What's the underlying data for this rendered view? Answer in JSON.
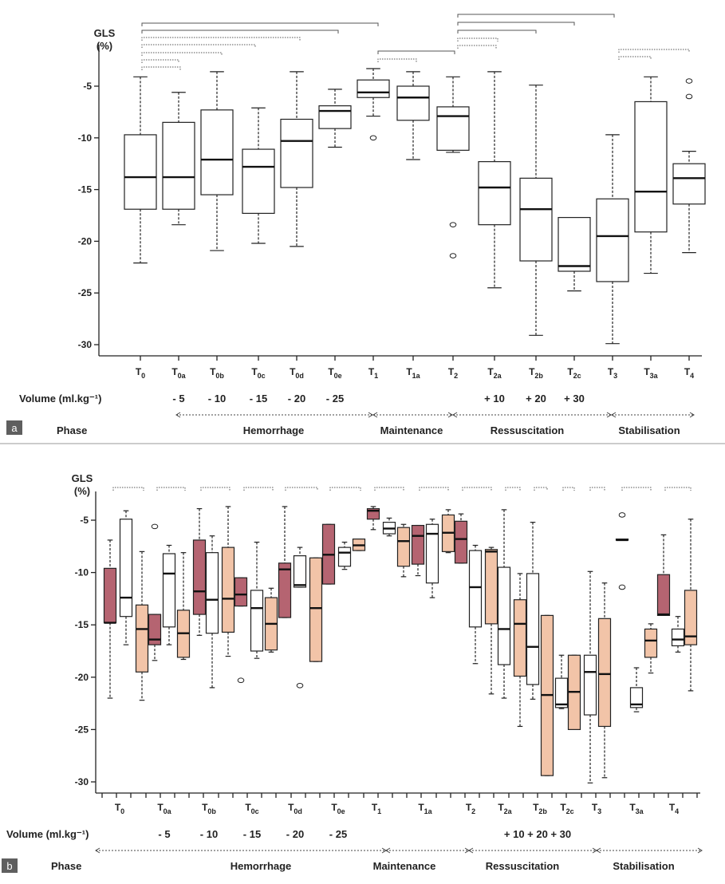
{
  "chart_data": [
    {
      "panel_label": "a",
      "type": "box",
      "title": "GLS\n(%)",
      "ylim": [
        -31,
        -1
      ],
      "yticks": [
        -5,
        -10,
        -15,
        -20,
        -25,
        -30
      ],
      "categories": [
        {
          "main": "T",
          "sub": "0"
        },
        {
          "main": "T",
          "sub": "0a"
        },
        {
          "main": "T",
          "sub": "0b"
        },
        {
          "main": "T",
          "sub": "0c"
        },
        {
          "main": "T",
          "sub": "0d"
        },
        {
          "main": "T",
          "sub": "0e"
        },
        {
          "main": "T",
          "sub": "1"
        },
        {
          "main": "T",
          "sub": "1a"
        },
        {
          "main": "T",
          "sub": "2"
        },
        {
          "main": "T",
          "sub": "2a"
        },
        {
          "main": "T",
          "sub": "2b"
        },
        {
          "main": "T",
          "sub": "2c"
        },
        {
          "main": "T",
          "sub": "3"
        },
        {
          "main": "T",
          "sub": "3a"
        },
        {
          "main": "T",
          "sub": "4"
        }
      ],
      "boxes": [
        {
          "min": -22.1,
          "q1": -16.9,
          "med": -13.8,
          "q3": -9.7,
          "max": -4.1,
          "outliers": []
        },
        {
          "min": -18.4,
          "q1": -16.9,
          "med": -13.8,
          "q3": -8.5,
          "max": -5.6,
          "outliers": []
        },
        {
          "min": -20.9,
          "q1": -15.5,
          "med": -12.1,
          "q3": -7.3,
          "max": -3.6,
          "outliers": []
        },
        {
          "min": -20.2,
          "q1": -17.3,
          "med": -12.8,
          "q3": -11.1,
          "max": -7.1,
          "outliers": []
        },
        {
          "min": -20.5,
          "q1": -14.8,
          "med": -10.3,
          "q3": -8.2,
          "max": -3.6,
          "outliers": []
        },
        {
          "min": -10.9,
          "q1": -9.1,
          "med": -7.4,
          "q3": -6.9,
          "max": -5.3,
          "outliers": []
        },
        {
          "min": -7.9,
          "q1": -6.1,
          "med": -5.6,
          "q3": -4.4,
          "max": -3.3,
          "outliers": [
            -10
          ]
        },
        {
          "min": -12.1,
          "q1": -8.3,
          "med": -6.1,
          "q3": -5.0,
          "max": -3.6,
          "outliers": []
        },
        {
          "min": -11.4,
          "q1": -11.2,
          "med": -7.9,
          "q3": -7.0,
          "max": -4.1,
          "outliers": [
            -18.4,
            -21.4
          ]
        },
        {
          "min": -24.5,
          "q1": -18.4,
          "med": -14.8,
          "q3": -12.3,
          "max": -3.6,
          "outliers": []
        },
        {
          "min": -29.1,
          "q1": -21.9,
          "med": -16.9,
          "q3": -13.9,
          "max": -4.9,
          "outliers": []
        },
        {
          "min": -24.8,
          "q1": -22.9,
          "med": -22.4,
          "q3": -17.7,
          "max": -17.7,
          "outliers": []
        },
        {
          "min": -29.9,
          "q1": -23.9,
          "med": -19.5,
          "q3": -15.9,
          "max": -9.7,
          "outliers": []
        },
        {
          "min": -23.1,
          "q1": -19.1,
          "med": -15.2,
          "q3": -6.5,
          "max": -4.1,
          "outliers": []
        },
        {
          "min": -21.1,
          "q1": -16.4,
          "med": -13.9,
          "q3": -12.5,
          "max": -11.3,
          "outliers": [
            -4.5,
            -6.0
          ]
        }
      ],
      "volume_label": "Volume (ml.kg⁻¹)",
      "volumes": [
        "",
        "- 5",
        "- 10",
        "- 15",
        "- 20",
        "- 25",
        "",
        "",
        "",
        "+ 10",
        "+ 20",
        "+ 30",
        "",
        "",
        ""
      ],
      "phase_label": "Phase",
      "phases": [
        "Hemorrhage",
        "Maintenance",
        "Ressuscitation",
        "Stabilisation"
      ]
    },
    {
      "panel_label": "b",
      "type": "box",
      "title": "GLS\n(%)",
      "ylim": [
        -30.6,
        -1.5
      ],
      "yticks": [
        -5,
        -10,
        -15,
        -20,
        -25,
        -30
      ],
      "categories": [
        {
          "main": "T",
          "sub": "0"
        },
        {
          "main": "T",
          "sub": "0a"
        },
        {
          "main": "T",
          "sub": "0b"
        },
        {
          "main": "T",
          "sub": "0c"
        },
        {
          "main": "T",
          "sub": "0d"
        },
        {
          "main": "T",
          "sub": "0e"
        },
        {
          "main": "T",
          "sub": "1"
        },
        {
          "main": "T",
          "sub": "1a"
        },
        {
          "main": "T",
          "sub": "2"
        },
        {
          "main": "T",
          "sub": "2a"
        },
        {
          "main": "T",
          "sub": "2b"
        },
        {
          "main": "T",
          "sub": "2c"
        },
        {
          "main": "T",
          "sub": "3"
        },
        {
          "main": "T",
          "sub": "3a"
        },
        {
          "main": "T",
          "sub": "4"
        }
      ],
      "colors": {
        "dark": "#b56471",
        "white": "#ffffff",
        "light": "#f2c4a8"
      },
      "boxes": [
        {
          "min": -22.0,
          "q1": -14.8,
          "med": -14.8,
          "q3": -9.6,
          "max": -6.9,
          "outliers": [],
          "color": "dark"
        },
        {
          "min": -16.9,
          "q1": -14.2,
          "med": -12.4,
          "q3": -4.9,
          "max": -4.1,
          "outliers": [],
          "color": "white"
        },
        {
          "min": -22.2,
          "q1": -19.5,
          "med": -15.4,
          "q3": -13.1,
          "max": -8.0,
          "outliers": [],
          "color": "light"
        },
        {
          "min": -18.4,
          "q1": -16.9,
          "med": -16.4,
          "q3": -14.0,
          "max": -14.0,
          "outliers": [
            -5.6
          ],
          "color": "dark"
        },
        {
          "min": -16.9,
          "q1": -15.2,
          "med": -10.1,
          "q3": -8.2,
          "max": -7.4,
          "outliers": [],
          "color": "white"
        },
        {
          "min": -18.3,
          "q1": -18.1,
          "med": -15.8,
          "q3": -13.6,
          "max": -8.1,
          "outliers": [],
          "color": "light"
        },
        {
          "min": -16.0,
          "q1": -14.0,
          "med": -11.8,
          "q3": -6.9,
          "max": -3.9,
          "outliers": [],
          "color": "dark"
        },
        {
          "min": -21.0,
          "q1": -15.8,
          "med": -12.6,
          "q3": -8.1,
          "max": -6.5,
          "outliers": [],
          "color": "white"
        },
        {
          "min": -18.0,
          "q1": -15.7,
          "med": -12.5,
          "q3": -7.6,
          "max": -3.7,
          "outliers": [],
          "color": "light"
        },
        {
          "min": -13.2,
          "q1": -13.2,
          "med": -12.1,
          "q3": -10.5,
          "max": -10.5,
          "outliers": [
            -20.3
          ],
          "color": "dark"
        },
        {
          "min": -18.2,
          "q1": -17.5,
          "med": -13.4,
          "q3": -11.7,
          "max": -7.1,
          "outliers": [],
          "color": "white"
        },
        {
          "min": -17.6,
          "q1": -17.4,
          "med": -14.9,
          "q3": -12.4,
          "max": -11.5,
          "outliers": [],
          "color": "light"
        },
        {
          "min": -14.3,
          "q1": -14.3,
          "med": -9.7,
          "q3": -9.1,
          "max": -3.7,
          "outliers": [],
          "color": "dark"
        },
        {
          "min": -11.4,
          "q1": -11.4,
          "med": -11.2,
          "q3": -8.4,
          "max": -7.6,
          "outliers": [
            -20.8
          ],
          "color": "white"
        },
        {
          "min": -18.5,
          "q1": -18.5,
          "med": -13.4,
          "q3": -8.6,
          "max": -8.6,
          "outliers": [],
          "color": "light"
        },
        {
          "min": -11.1,
          "q1": -11.1,
          "med": -8.3,
          "q3": -5.4,
          "max": -5.4,
          "outliers": [],
          "color": "dark"
        },
        {
          "min": -9.7,
          "q1": -9.4,
          "med": -8.1,
          "q3": -7.6,
          "max": -7.1,
          "outliers": [],
          "color": "white"
        },
        {
          "min": -7.9,
          "q1": -7.9,
          "med": -7.4,
          "q3": -6.8,
          "max": -6.8,
          "outliers": [],
          "color": "light"
        },
        {
          "min": -5.9,
          "q1": -4.9,
          "med": -4.1,
          "q3": -3.9,
          "max": -3.7,
          "outliers": [],
          "color": "dark"
        },
        {
          "min": -6.5,
          "q1": -6.3,
          "med": -5.8,
          "q3": -5.2,
          "max": -4.8,
          "outliers": [],
          "color": "white"
        },
        {
          "min": -10.4,
          "q1": -9.4,
          "med": -7.0,
          "q3": -5.7,
          "max": -5.4,
          "outliers": [],
          "color": "light"
        },
        {
          "min": -10.3,
          "q1": -9.2,
          "med": -6.5,
          "q3": -5.5,
          "max": -5.5,
          "outliers": [],
          "color": "dark"
        },
        {
          "min": -12.4,
          "q1": -11.0,
          "med": -6.3,
          "q3": -5.4,
          "max": -4.9,
          "outliers": [],
          "color": "white"
        },
        {
          "min": -8.1,
          "q1": -8.0,
          "med": -6.2,
          "q3": -4.5,
          "max": -4.0,
          "outliers": [],
          "color": "light"
        },
        {
          "min": -9.1,
          "q1": -9.1,
          "med": -6.8,
          "q3": -5.1,
          "max": -4.4,
          "outliers": [],
          "color": "dark"
        },
        {
          "min": -18.7,
          "q1": -15.2,
          "med": -11.4,
          "q3": -7.9,
          "max": -7.4,
          "outliers": [],
          "color": "white"
        },
        {
          "min": -21.6,
          "q1": -14.9,
          "med": -8.0,
          "q3": -7.8,
          "max": -7.6,
          "outliers": [],
          "color": "light"
        },
        {
          "min": -22.0,
          "q1": -18.8,
          "med": -15.4,
          "q3": -9.5,
          "max": -4.0,
          "outliers": [],
          "color": "white"
        },
        {
          "min": -24.7,
          "q1": -19.9,
          "med": -14.9,
          "q3": -12.6,
          "max": -10.1,
          "outliers": [],
          "color": "light"
        },
        {
          "min": -22.1,
          "q1": -20.7,
          "med": -17.1,
          "q3": -10.1,
          "max": -5.2,
          "outliers": [],
          "color": "white"
        },
        {
          "min": -29.4,
          "q1": -29.4,
          "med": -21.7,
          "q3": -14.1,
          "max": -14.1,
          "outliers": [],
          "color": "light"
        },
        {
          "min": -23.0,
          "q1": -22.9,
          "med": -22.6,
          "q3": -20.1,
          "max": -17.9,
          "outliers": [],
          "color": "white"
        },
        {
          "min": -25.0,
          "q1": -25.0,
          "med": -21.4,
          "q3": -17.9,
          "max": -17.9,
          "outliers": [],
          "color": "light"
        },
        {
          "min": -30.1,
          "q1": -23.6,
          "med": -19.5,
          "q3": -17.9,
          "max": -9.9,
          "outliers": [],
          "color": "white"
        },
        {
          "min": -29.6,
          "q1": -24.7,
          "med": -19.7,
          "q3": -14.4,
          "max": -11.0,
          "outliers": [],
          "color": "light"
        },
        {
          "min": -6.9,
          "q1": -6.9,
          "med": -6.9,
          "q3": -6.8,
          "max": -6.8,
          "outliers": [
            -4.5,
            -11.4
          ],
          "color": "dark"
        },
        {
          "min": -23.3,
          "q1": -22.9,
          "med": -22.6,
          "q3": -21.0,
          "max": -19.1,
          "outliers": [],
          "color": "white"
        },
        {
          "min": -19.6,
          "q1": -18.1,
          "med": -16.5,
          "q3": -15.4,
          "max": -14.9,
          "outliers": [],
          "color": "light"
        },
        {
          "min": -14.1,
          "q1": -14.1,
          "med": -14.0,
          "q3": -10.2,
          "max": -6.4,
          "outliers": [],
          "color": "dark"
        },
        {
          "min": -17.6,
          "q1": -17.0,
          "med": -16.4,
          "q3": -15.4,
          "max": -14.2,
          "outliers": [],
          "color": "white"
        },
        {
          "min": -21.3,
          "q1": -16.9,
          "med": -16.1,
          "q3": -11.7,
          "max": -4.9,
          "outliers": [],
          "color": "light"
        }
      ],
      "volume_label": "Volume (ml.kg⁻¹)",
      "volumes": [
        "",
        "- 5",
        "- 10",
        "- 15",
        "- 20",
        "- 25",
        "",
        "",
        "",
        "",
        "",
        "",
        "",
        "",
        ""
      ],
      "volume_resus": "+ 10 + 20 + 30",
      "phase_label": "Phase",
      "phases": [
        "Hemorrhage",
        "Maintenance",
        "Ressuscitation",
        "Stabilisation"
      ]
    }
  ]
}
